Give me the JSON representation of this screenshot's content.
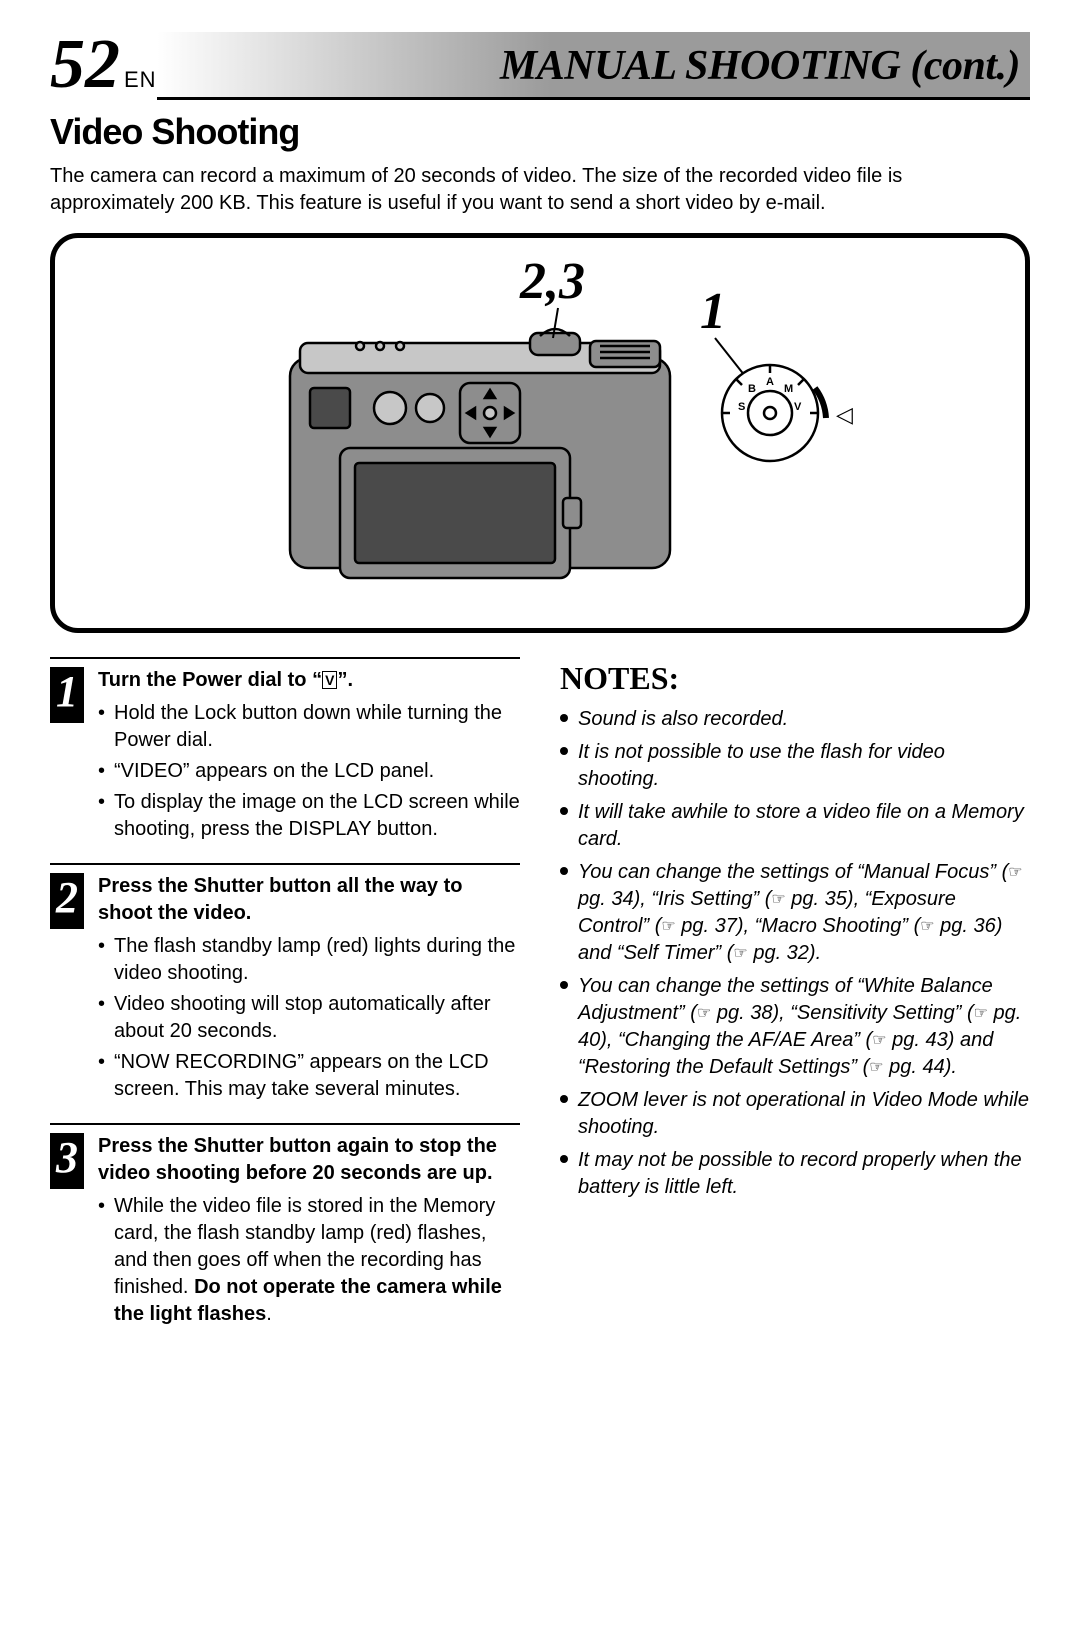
{
  "header": {
    "page_number": "52",
    "lang": "EN",
    "chapter_title": "MANUAL SHOOTING (cont.)"
  },
  "section_title": "Video Shooting",
  "intro": "The camera can record a maximum of 20 seconds of video. The size of the recorded video file is approximately 200 KB. This feature is useful if you want to send a short video by e-mail.",
  "illustration": {
    "callout_a": "2,3",
    "callout_b": "1",
    "dial_arrow_glyph": "◁",
    "dial_letters": [
      "A",
      "M",
      "V",
      "B",
      "S"
    ],
    "stroke": "#000000",
    "fill_body": "#8d8d8d",
    "fill_body_light": "#c7c7c7",
    "fill_dark": "#4a4a4a",
    "background": "#ffffff",
    "callout_font": "Georgia, 'Times New Roman', serif",
    "callout_style": "italic",
    "callout_weight": "700",
    "callout_size_pt": 42
  },
  "steps": [
    {
      "num": "1",
      "head_prefix": "Turn the Power dial to “",
      "head_suffix": "”.",
      "icon": "V",
      "bullets": [
        "Hold the Lock button down while turning the Power dial.",
        "“VIDEO” appears on the LCD panel.",
        "To display the image on the LCD screen while shooting, press the DISPLAY button."
      ]
    },
    {
      "num": "2",
      "head": "Press the Shutter button all the way to shoot the video.",
      "bullets": [
        "The flash standby lamp (red) lights during the video shooting.",
        "Video shooting will stop automatically after about 20 seconds.",
        "“NOW RECORDING” appears on the LCD screen. This may take several minutes."
      ]
    },
    {
      "num": "3",
      "head": "Press the Shutter button again to stop the video shooting before 20 seconds are up.",
      "bullets_html": [
        "While the video file is stored in the Memory card, the flash standby lamp (red) flashes, and then goes off when the recording has finished. <span class='strong'>Do not operate the camera while the light flashes</span>."
      ]
    }
  ],
  "notes_title": "NOTES:",
  "notes": [
    {
      "text": "Sound is also recorded."
    },
    {
      "text": "It is not possible to use the flash for video shooting."
    },
    {
      "text": "It will take awhile to store a video file on a Memory card."
    },
    {
      "html": "You can change the settings of “Manual Focus” (<span class='hand'>☞</span> pg. 34), “Iris Setting” (<span class='hand'>☞</span> pg. 35), “Exposure Control” (<span class='hand'>☞</span> pg. 37), “Macro Shooting” (<span class='hand'>☞</span> pg. 36) and “Self Timer” (<span class='hand'>☞</span> pg. 32)."
    },
    {
      "html": "You can change the settings of “White Balance Adjustment” (<span class='hand'>☞</span> pg. 38), “Sensitivity Setting” (<span class='hand'>☞</span> pg. 40), “Changing the AF/AE Area” (<span class='hand'>☞</span> pg. 43) and “Restoring the Default Settings” (<span class='hand'>☞</span> pg. 44)."
    },
    {
      "text": "ZOOM lever is not operational in Video Mode while shooting."
    },
    {
      "text": "It may not be possible to record properly when the battery is little left."
    }
  ]
}
